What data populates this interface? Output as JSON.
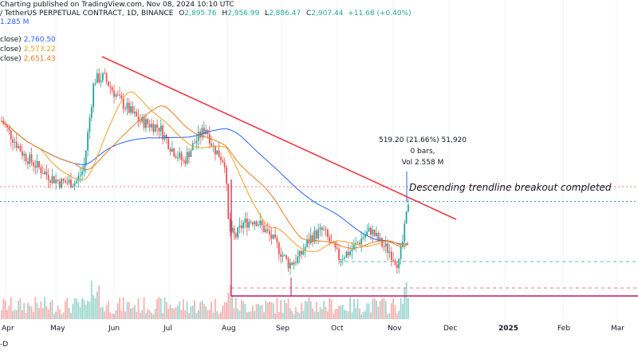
{
  "header": {
    "published": "Charting published on TradingView.com, Nov 08, 2024 10:10 UTC",
    "symbol": "/ TetherUS PERPETUAL CONTRACT, 1D, BINANCE",
    "o_label": "O",
    "o": "2,895.76",
    "h_label": "H",
    "h": "2,956.99",
    "l_label": "L",
    "l": "2,886.47",
    "c_label": "C",
    "c": "2,907.44",
    "change": "+11.68 (+0.40%)",
    "volume": "1.285 M"
  },
  "moving_averages": [
    {
      "label": "close)",
      "value": "2,760.50",
      "color": "#2962ff"
    },
    {
      "label": "close)",
      "value": "2,573.22",
      "color": "#f0a020"
    },
    {
      "label": "close)",
      "value": "2,651.43",
      "color": "#e67e22"
    }
  ],
  "measure": {
    "line1": "519.20 (21.66%) 51,920",
    "line2": "0 bars,",
    "line3": "Vol 2.558 M"
  },
  "callout": "Descending trendline breakout completed",
  "x_axis": {
    "months": [
      "Apr",
      "May",
      "Jun",
      "Jul",
      "Aug",
      "Sep",
      "Oct",
      "Nov",
      "Dec",
      "2025",
      "Feb",
      "Mar"
    ]
  },
  "footer": "-D",
  "colors": {
    "up": "#26a69a",
    "down": "#ef5350",
    "trendline": "#f23645",
    "ma_blue": "#2962ff",
    "ma_orange": "#f0a020",
    "ma_dark_orange": "#e67e22"
  },
  "chart_data": {
    "type": "candlestick",
    "price_axis": {
      "min": 2050,
      "max": 4150
    },
    "x": [
      "2024-04-01",
      "2024-05-01",
      "2024-06-01",
      "2024-07-01",
      "2024-08-01",
      "2024-09-01",
      "2024-10-01",
      "2024-11-01",
      "2024-11-08"
    ],
    "series": [
      {
        "name": "close",
        "values": [
          3500,
          3000,
          3800,
          3400,
          2700,
          2450,
          2500,
          2550,
          2907
        ]
      }
    ],
    "levels": [
      2910,
      2400,
      2260
    ]
  }
}
